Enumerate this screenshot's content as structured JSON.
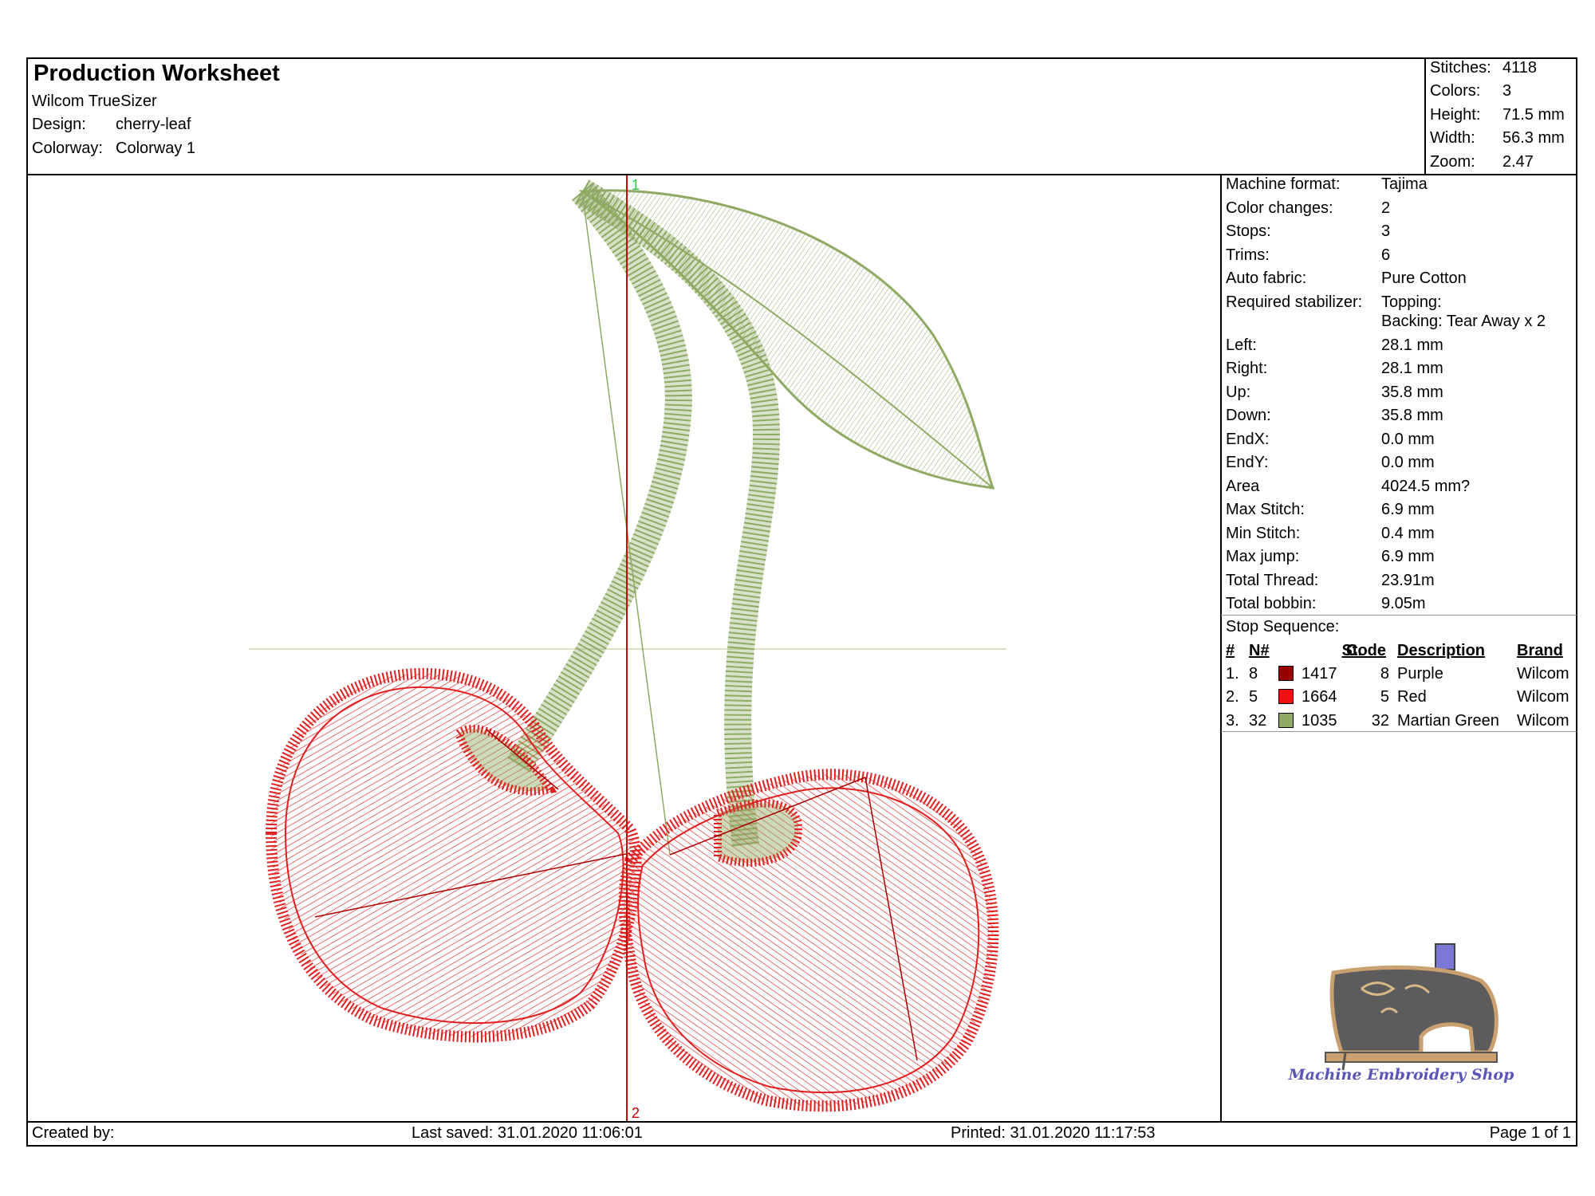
{
  "header": {
    "title": "Production Worksheet",
    "software": "Wilcom TrueSizer",
    "design_label": "Design:",
    "design_value": "cherry-leaf",
    "colorway_label": "Colorway:",
    "colorway_value": "Colorway 1"
  },
  "summary": [
    {
      "label": "Stitches:",
      "value": "4118"
    },
    {
      "label": "Colors:",
      "value": "3"
    },
    {
      "label": "Height:",
      "value": "71.5 mm"
    },
    {
      "label": "Width:",
      "value": "56.3 mm"
    },
    {
      "label": "Zoom:",
      "value": "2.47"
    }
  ],
  "details": [
    {
      "label": "Machine format:",
      "value": "Tajima"
    },
    {
      "label": "Color changes:",
      "value": "2"
    },
    {
      "label": "Stops:",
      "value": "3"
    },
    {
      "label": "Trims:",
      "value": "6"
    },
    {
      "label": "Auto fabric:",
      "value": "Pure Cotton"
    },
    {
      "label": "Required stabilizer:",
      "value": "Topping:",
      "value2": "Backing: Tear Away x 2"
    },
    {
      "label": "Left:",
      "value": "28.1 mm"
    },
    {
      "label": "Right:",
      "value": "28.1 mm"
    },
    {
      "label": "Up:",
      "value": "35.8 mm"
    },
    {
      "label": "Down:",
      "value": "35.8 mm"
    },
    {
      "label": "EndX:",
      "value": "0.0 mm"
    },
    {
      "label": "EndY:",
      "value": "0.0 mm"
    },
    {
      "label": "Area",
      "value": "4024.5 mm?"
    },
    {
      "label": "Max Stitch:",
      "value": "6.9 mm"
    },
    {
      "label": "Min Stitch:",
      "value": "0.4 mm"
    },
    {
      "label": "Max jump:",
      "value": "6.9 mm"
    },
    {
      "label": "Total Thread:",
      "value": "23.91m"
    },
    {
      "label": "Total bobbin:",
      "value": "9.05m"
    }
  ],
  "stop_sequence": {
    "title": "Stop Sequence:",
    "headers": {
      "num": "#",
      "n": "N#",
      "st": "St.",
      "code": "Code",
      "desc": "Description",
      "brand": "Brand"
    },
    "rows": [
      {
        "num": "1.",
        "n": "8",
        "color": "#990000",
        "st": "1417",
        "code": "8",
        "desc": "Purple",
        "brand": "Wilcom"
      },
      {
        "num": "2.",
        "n": "5",
        "color": "#ee1111",
        "st": "1664",
        "code": "5",
        "desc": "Red",
        "brand": "Wilcom"
      },
      {
        "num": "3.",
        "n": "32",
        "color": "#8faa64",
        "st": "1035",
        "code": "32",
        "desc": "Martian Green",
        "brand": "Wilcom"
      }
    ]
  },
  "canvas": {
    "marker_start": "1",
    "marker_end": "2",
    "colors": {
      "leaf": "#8faa64",
      "cherry": "#e02020",
      "axis": "#cc0000",
      "guide": "#dde0c0"
    }
  },
  "logo": {
    "text": "Machine Embroidery Shop"
  },
  "footer": {
    "created": "Created by:",
    "saved": "Last saved: 31.01.2020 11:06:01",
    "printed": "Printed: 31.01.2020 11:17:53",
    "page": "Page 1 of 1"
  }
}
